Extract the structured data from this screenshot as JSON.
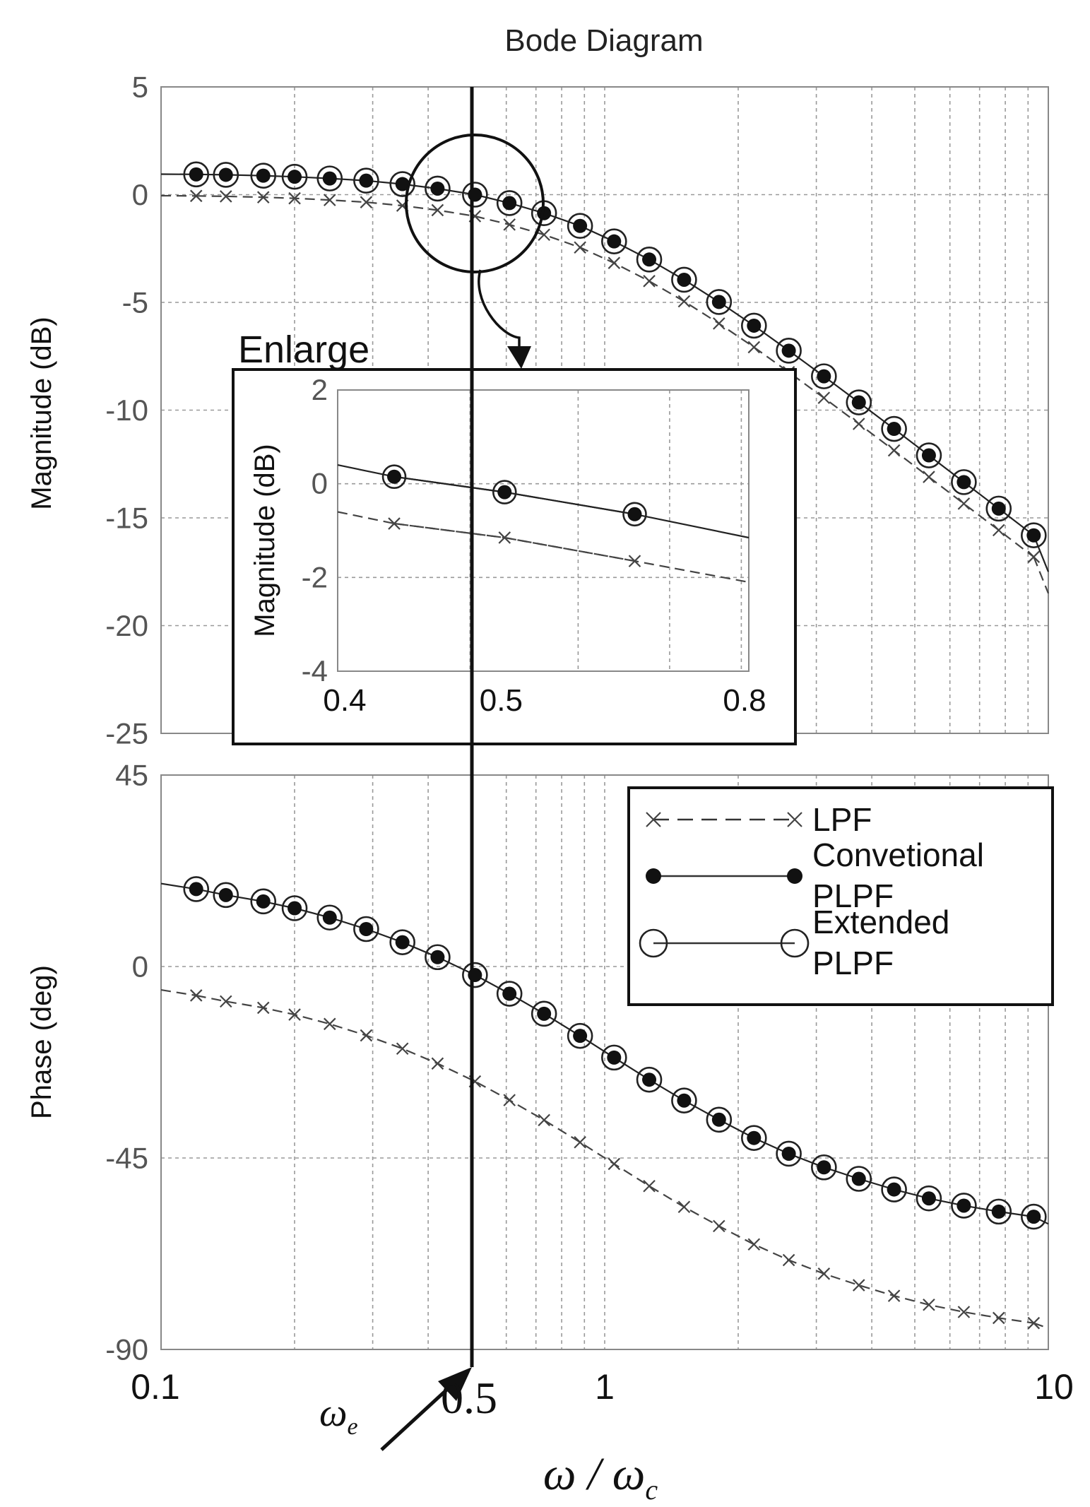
{
  "chart_data": [
    {
      "type": "line",
      "panel": "magnitude",
      "title": "Bode Diagram",
      "xlabel_var": "ω",
      "xlabel_sep": " / ",
      "xlabel_base": "ω",
      "xlabel_sub": "c",
      "ylabel": "Magnitude (dB)",
      "xscale": "log",
      "xlim": [
        0.1,
        10
      ],
      "ylim": [
        -25,
        5
      ],
      "grid": true,
      "x_ticks": [
        "0.1",
        "1",
        "10"
      ],
      "y_ticks": [
        "5",
        "0",
        "-5",
        "-10",
        "-15",
        "-20",
        "-25"
      ],
      "x": [
        0.12,
        0.14,
        0.17,
        0.2,
        0.24,
        0.29,
        0.35,
        0.42,
        0.51,
        0.61,
        0.73,
        0.88,
        1.05,
        1.26,
        1.51,
        1.81,
        2.17,
        2.6,
        3.12,
        3.74,
        4.49,
        5.38,
        6.45,
        7.73,
        9.27
      ],
      "series": [
        {
          "name": "LPF",
          "values": [
            -0.06,
            -0.08,
            -0.12,
            -0.17,
            -0.25,
            -0.35,
            -0.51,
            -0.72,
            -1.0,
            -1.39,
            -1.86,
            -2.45,
            -3.17,
            -4.01,
            -4.95,
            -5.98,
            -7.08,
            -8.24,
            -9.43,
            -10.64,
            -11.87,
            -13.1,
            -14.34,
            -15.57,
            -16.81
          ]
        },
        {
          "name": "Convetional PLPF",
          "values": [
            0.94,
            0.92,
            0.88,
            0.83,
            0.75,
            0.65,
            0.49,
            0.28,
            0.0,
            -0.39,
            -0.86,
            -1.45,
            -2.17,
            -3.01,
            -3.95,
            -4.98,
            -6.08,
            -7.24,
            -8.43,
            -9.64,
            -10.87,
            -12.1,
            -13.34,
            -14.57,
            -15.81
          ]
        },
        {
          "name": "Extended PLPF",
          "values": [
            0.94,
            0.92,
            0.88,
            0.83,
            0.75,
            0.65,
            0.49,
            0.28,
            0.0,
            -0.39,
            -0.86,
            -1.45,
            -2.17,
            -3.01,
            -3.95,
            -4.98,
            -6.08,
            -7.24,
            -8.43,
            -9.64,
            -10.87,
            -12.1,
            -13.34,
            -14.57,
            -15.81
          ]
        }
      ],
      "annotations": {
        "vertical_marker": {
          "x": 0.5,
          "symbol": "ω",
          "symbol_sub": "e",
          "value_label": "0.5"
        },
        "enlarge_label": "Enlarge"
      }
    },
    {
      "type": "line",
      "panel": "magnitude-inset",
      "ylabel": "Magnitude (dB)",
      "xscale": "log",
      "xlim": [
        0.4,
        0.8
      ],
      "ylim": [
        -4,
        2
      ],
      "grid": true,
      "x_ticks": [
        "0.4",
        "0.5",
        "0.8"
      ],
      "y_ticks": [
        "2",
        "0",
        "-2",
        "-4"
      ],
      "x": [
        0.44,
        0.53,
        0.66
      ],
      "series": [
        {
          "name": "LPF",
          "values": [
            -0.85,
            -1.15,
            -1.65
          ]
        },
        {
          "name": "Convetional PLPF",
          "values": [
            0.15,
            -0.18,
            -0.65
          ]
        },
        {
          "name": "Extended PLPF",
          "values": [
            0.15,
            -0.18,
            -0.65
          ]
        }
      ]
    },
    {
      "type": "line",
      "panel": "phase",
      "ylabel": "Phase (deg)",
      "xscale": "log",
      "xlim": [
        0.1,
        10
      ],
      "ylim": [
        -90,
        45
      ],
      "grid": true,
      "x_ticks": [
        "0.1",
        "1",
        "10"
      ],
      "y_ticks": [
        "45",
        "0",
        "-45",
        "-90"
      ],
      "x": [
        0.12,
        0.14,
        0.17,
        0.2,
        0.24,
        0.29,
        0.35,
        0.42,
        0.51,
        0.61,
        0.73,
        0.88,
        1.05,
        1.26,
        1.51,
        1.81,
        2.17,
        2.6,
        3.12,
        3.74,
        4.49,
        5.38,
        6.45,
        7.73,
        9.27
      ],
      "series": [
        {
          "name": "LPF",
          "values": [
            -6.8,
            -8.2,
            -9.7,
            -11.3,
            -13.5,
            -16.2,
            -19.3,
            -22.8,
            -27.0,
            -31.4,
            -36.1,
            -41.3,
            -46.4,
            -51.6,
            -56.5,
            -61.0,
            -65.3,
            -69.0,
            -72.2,
            -74.9,
            -77.4,
            -79.5,
            -81.2,
            -82.6,
            -83.8
          ]
        },
        {
          "name": "Convetional PLPF",
          "values": [
            18.2,
            16.8,
            15.3,
            13.7,
            11.5,
            8.8,
            5.7,
            2.2,
            -2.0,
            -6.4,
            -11.1,
            -16.3,
            -21.4,
            -26.6,
            -31.5,
            -36.0,
            -40.3,
            -44.0,
            -47.2,
            -49.9,
            -52.4,
            -54.5,
            -56.2,
            -57.6,
            -58.8
          ]
        },
        {
          "name": "Extended PLPF",
          "values": [
            18.2,
            16.8,
            15.3,
            13.7,
            11.5,
            8.8,
            5.7,
            2.2,
            -2.0,
            -6.4,
            -11.1,
            -16.3,
            -21.4,
            -26.6,
            -31.5,
            -36.0,
            -40.3,
            -44.0,
            -47.2,
            -49.9,
            -52.4,
            -54.5,
            -56.2,
            -57.6,
            -58.8
          ]
        }
      ],
      "legend": {
        "position": "top-right",
        "entries": [
          {
            "lines": [
              "LPF"
            ]
          },
          {
            "lines": [
              "Convetional",
              "PLPF"
            ]
          },
          {
            "lines": [
              "Extended",
              "PLPF"
            ]
          }
        ]
      }
    }
  ]
}
